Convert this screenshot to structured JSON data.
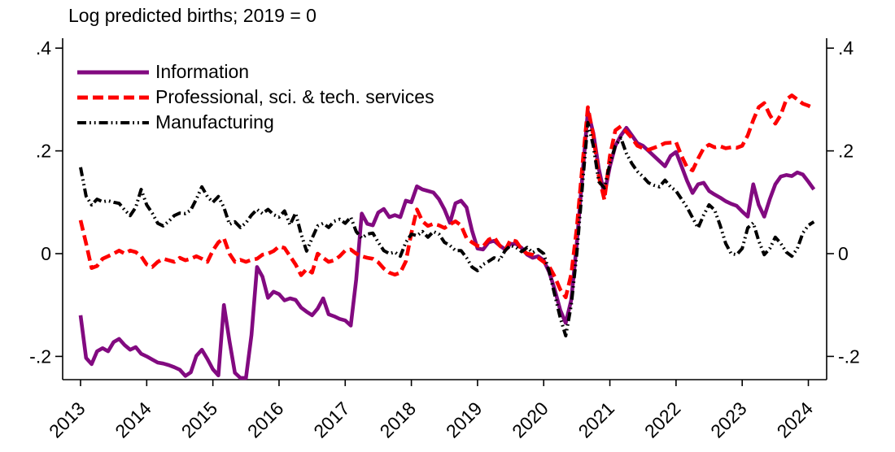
{
  "title": "Log predicted births; 2019 = 0",
  "axes": {
    "y_ticks": [
      {
        "label": ".4",
        "value": 0.4
      },
      {
        "label": ".2",
        "value": 0.2
      },
      {
        "label": "0",
        "value": 0.0
      },
      {
        "label": "-.2",
        "value": -0.2
      }
    ],
    "x_ticks": [
      {
        "label": "2013",
        "value": 2013
      },
      {
        "label": "2014",
        "value": 2014
      },
      {
        "label": "2015",
        "value": 2015
      },
      {
        "label": "2016",
        "value": 2016
      },
      {
        "label": "2017",
        "value": 2017
      },
      {
        "label": "2018",
        "value": 2018
      },
      {
        "label": "2019",
        "value": 2019
      },
      {
        "label": "2020",
        "value": 2020
      },
      {
        "label": "2021",
        "value": 2021
      },
      {
        "label": "2022",
        "value": 2022
      },
      {
        "label": "2023",
        "value": 2023
      },
      {
        "label": "2024",
        "value": 2024
      }
    ]
  },
  "legend": {
    "items": [
      {
        "label": "Information"
      },
      {
        "label": "Professional, sci. & tech. services"
      },
      {
        "label": "Manufacturing"
      }
    ]
  },
  "chart_data": {
    "type": "line",
    "title": "Log predicted births; 2019 = 0",
    "x_start_year": 2013.0,
    "x_frequency": "monthly",
    "x_end_year": 2024.083,
    "ylim": [
      -0.245,
      0.42
    ],
    "grid": false,
    "legend_position": "top-left-inside",
    "series": [
      {
        "name": "Information",
        "color": "#820a80",
        "style": "solid",
        "values": [
          -0.12,
          -0.203,
          -0.215,
          -0.19,
          -0.184,
          -0.19,
          -0.172,
          -0.166,
          -0.178,
          -0.187,
          -0.182,
          -0.195,
          -0.2,
          -0.206,
          -0.212,
          -0.214,
          -0.217,
          -0.221,
          -0.226,
          -0.238,
          -0.231,
          -0.199,
          -0.187,
          -0.205,
          -0.225,
          -0.237,
          -0.1,
          -0.17,
          -0.232,
          -0.242,
          -0.242,
          -0.158,
          -0.026,
          -0.045,
          -0.086,
          -0.074,
          -0.079,
          -0.091,
          -0.087,
          -0.09,
          -0.105,
          -0.113,
          -0.12,
          -0.107,
          -0.087,
          -0.118,
          -0.122,
          -0.127,
          -0.13,
          -0.14,
          -0.05,
          0.078,
          0.058,
          0.055,
          0.08,
          0.087,
          0.071,
          0.075,
          0.071,
          0.103,
          0.1,
          0.131,
          0.125,
          0.122,
          0.119,
          0.106,
          0.086,
          0.06,
          0.098,
          0.103,
          0.09,
          0.045,
          0.01,
          0.008,
          0.022,
          0.025,
          0.016,
          0.008,
          0.019,
          0.019,
          0.011,
          -0.002,
          -0.008,
          -0.005,
          -0.013,
          -0.036,
          -0.07,
          -0.11,
          -0.135,
          -0.09,
          0.02,
          0.15,
          0.277,
          0.235,
          0.165,
          0.115,
          0.17,
          0.21,
          0.23,
          0.245,
          0.23,
          0.215,
          0.21,
          0.2,
          0.19,
          0.18,
          0.17,
          0.19,
          0.198,
          0.17,
          0.142,
          0.118,
          0.135,
          0.138,
          0.122,
          0.115,
          0.109,
          0.102,
          0.097,
          0.093,
          0.082,
          0.072,
          0.135,
          0.095,
          0.072,
          0.106,
          0.135,
          0.15,
          0.153,
          0.151,
          0.158,
          0.154,
          0.14,
          0.125
        ]
      },
      {
        "name": "Professional, sci. & tech. services",
        "color": "#fe0000",
        "style": "dashed",
        "values": [
          0.065,
          0.02,
          -0.028,
          -0.024,
          -0.01,
          -0.005,
          0.0,
          0.006,
          0.0,
          0.006,
          0.003,
          -0.005,
          -0.021,
          -0.026,
          -0.016,
          -0.01,
          -0.013,
          -0.016,
          -0.008,
          -0.013,
          -0.01,
          -0.005,
          -0.01,
          -0.016,
          0.006,
          0.022,
          0.03,
          0.0,
          -0.016,
          -0.012,
          -0.016,
          -0.012,
          -0.01,
          -0.002,
          0.0,
          0.005,
          0.014,
          0.011,
          -0.005,
          -0.021,
          -0.042,
          -0.03,
          -0.037,
          0.0,
          -0.008,
          -0.016,
          -0.013,
          -0.005,
          0.006,
          0.008,
          0.0,
          -0.005,
          -0.008,
          -0.01,
          -0.017,
          -0.029,
          -0.037,
          -0.041,
          -0.037,
          -0.015,
          0.04,
          0.086,
          0.063,
          0.054,
          0.058,
          0.055,
          0.05,
          0.057,
          0.063,
          0.055,
          0.03,
          0.022,
          0.015,
          0.014,
          0.027,
          0.032,
          0.016,
          0.006,
          0.027,
          0.024,
          0.008,
          0.0,
          -0.002,
          -0.008,
          -0.016,
          -0.025,
          -0.045,
          -0.07,
          -0.085,
          -0.04,
          0.05,
          0.17,
          0.285,
          0.23,
          0.15,
          0.105,
          0.19,
          0.24,
          0.248,
          0.237,
          0.225,
          0.21,
          0.205,
          0.202,
          0.206,
          0.21,
          0.215,
          0.216,
          0.217,
          0.19,
          0.168,
          0.162,
          0.185,
          0.205,
          0.212,
          0.207,
          0.209,
          0.205,
          0.207,
          0.206,
          0.21,
          0.23,
          0.26,
          0.285,
          0.293,
          0.27,
          0.253,
          0.27,
          0.3,
          0.308,
          0.3,
          0.292,
          0.288,
          0.283
        ]
      },
      {
        "name": "Manufacturing",
        "color": "#000000",
        "style": "dash-dot-dot",
        "values": [
          0.168,
          0.112,
          0.095,
          0.106,
          0.101,
          0.103,
          0.1,
          0.098,
          0.085,
          0.074,
          0.09,
          0.125,
          0.095,
          0.079,
          0.059,
          0.054,
          0.063,
          0.074,
          0.079,
          0.078,
          0.085,
          0.106,
          0.13,
          0.111,
          0.1,
          0.111,
          0.09,
          0.057,
          0.062,
          0.051,
          0.06,
          0.075,
          0.086,
          0.078,
          0.086,
          0.076,
          0.071,
          0.083,
          0.056,
          0.079,
          0.038,
          0.005,
          0.03,
          0.054,
          0.059,
          0.051,
          0.063,
          0.067,
          0.059,
          0.071,
          0.043,
          0.03,
          0.038,
          0.04,
          0.022,
          0.006,
          0.0,
          0.003,
          -0.005,
          0.022,
          0.038,
          0.035,
          0.043,
          0.032,
          0.043,
          0.038,
          0.022,
          0.016,
          0.006,
          0.006,
          -0.008,
          -0.026,
          -0.033,
          -0.021,
          -0.015,
          -0.008,
          -0.013,
          0.006,
          0.016,
          0.012,
          0.004,
          0.012,
          0.002,
          0.008,
          0.0,
          -0.035,
          -0.08,
          -0.125,
          -0.16,
          -0.1,
          0.0,
          0.13,
          0.255,
          0.21,
          0.14,
          0.128,
          0.175,
          0.21,
          0.225,
          0.195,
          0.175,
          0.16,
          0.15,
          0.138,
          0.133,
          0.13,
          0.143,
          0.13,
          0.122,
          0.106,
          0.09,
          0.07,
          0.05,
          0.075,
          0.095,
          0.085,
          0.055,
          0.02,
          0.0,
          -0.002,
          0.01,
          0.05,
          0.06,
          0.025,
          -0.002,
          0.01,
          0.032,
          0.02,
          0.003,
          -0.005,
          0.01,
          0.04,
          0.055,
          0.062
        ]
      }
    ]
  }
}
